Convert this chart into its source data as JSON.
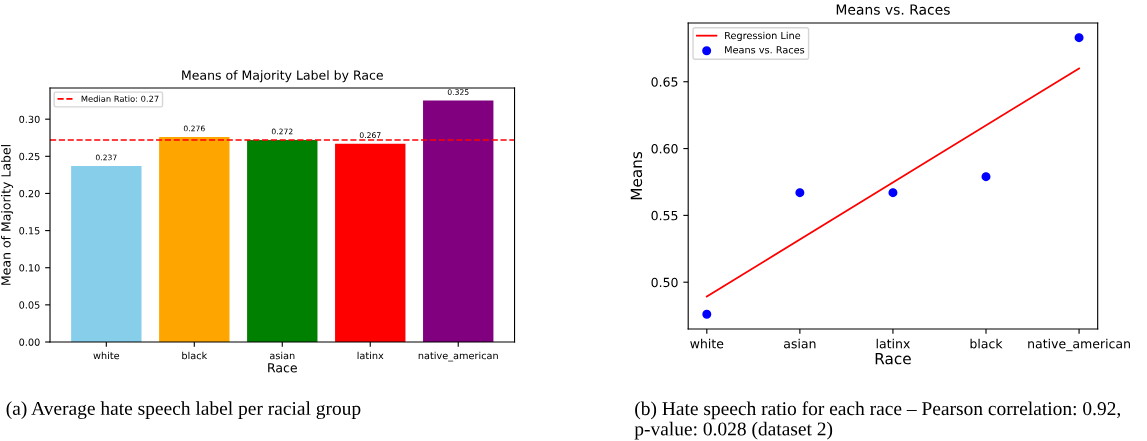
{
  "chart_data": [
    {
      "type": "bar",
      "title": "Means of Majority Label by Race",
      "xlabel": "Race",
      "ylabel": "Mean of Majority Label",
      "categories": [
        "white",
        "black",
        "asian",
        "latinx",
        "native_american"
      ],
      "values": [
        0.237,
        0.276,
        0.272,
        0.267,
        0.325
      ],
      "colors": [
        "#87ceeb",
        "#ffa500",
        "#008000",
        "#ff0000",
        "#800080"
      ],
      "value_labels": [
        "0.237",
        "0.276",
        "0.272",
        "0.267",
        "0.325"
      ],
      "ylim": [
        0,
        0.342
      ],
      "yticks": [
        {
          "value": 0,
          "label": "0.00"
        },
        0.05,
        {
          "value": 0.1,
          "label": "0.10"
        },
        0.15,
        {
          "value": 0.2,
          "label": "0.20"
        },
        0.25,
        {
          "value": 0.3,
          "label": "0.30"
        }
      ],
      "ref_lines": [
        {
          "axis": "y",
          "value": 0.272,
          "label": "Median Ratio: 0.27",
          "color": "#ff0000",
          "line_style": "dashed"
        }
      ],
      "legend": "top left",
      "annotations": [
        "(a) Average hate speech label per racial group"
      ]
    },
    {
      "type": "scatter",
      "title": "Means vs. Races",
      "xlabel": "Race",
      "ylabel": "Means",
      "categories": [
        "white",
        "asian",
        "latinx",
        "black",
        "native_american"
      ],
      "series": [
        {
          "name": "Regression Line",
          "type": "line",
          "color": "#ff0000",
          "marker": "none",
          "values": [
            0.4893,
            null,
            null,
            null,
            0.66
          ]
        },
        {
          "name": "Means vs. Races",
          "type": "scatter",
          "color": "#0000ff",
          "marker": "circle",
          "values": [
            0.476,
            0.567,
            0.567,
            0.579,
            0.683
          ]
        }
      ],
      "ylim": [
        0.465,
        0.694
      ],
      "yticks": [
        {
          "value": 0.5,
          "label": "0.50"
        },
        0.55,
        {
          "value": 0.6,
          "label": "0.60"
        },
        0.65
      ],
      "legend": "top left",
      "annotations": [
        "(b) Hate speech ratio for each race – Pearson correlation: 0.92, p-value: 0.028 (dataset 2)"
      ]
    }
  ]
}
